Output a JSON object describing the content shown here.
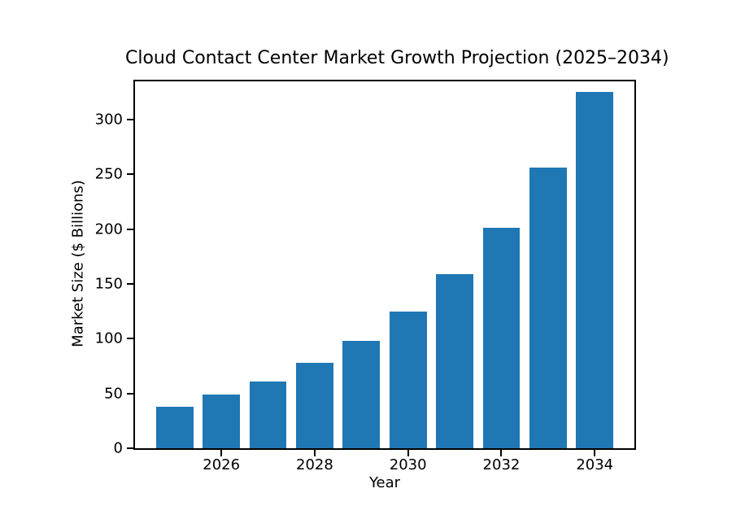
{
  "chart_data": {
    "type": "bar",
    "title": "Cloud Contact Center Market Growth Projection (2025–2034)",
    "xlabel": "Year",
    "ylabel": "Market Size ($ Billions)",
    "categories": [
      2025,
      2026,
      2027,
      2028,
      2029,
      2030,
      2031,
      2032,
      2033,
      2034
    ],
    "values": [
      38,
      49,
      61,
      78,
      98,
      125,
      159,
      201,
      256,
      325
    ],
    "series_name": "Market Size ($ Billions)",
    "yticks": [
      0,
      50,
      100,
      150,
      200,
      250,
      300
    ],
    "xticks": [
      2026,
      2028,
      2030,
      2032,
      2034
    ],
    "ylim": [
      0,
      335
    ],
    "xlim": [
      2024.15,
      2034.85
    ],
    "bar_width_years": 0.8,
    "grid": false,
    "legend": false,
    "colors": {
      "bar": "#1f77b4",
      "axis": "#000000",
      "text": "#000000",
      "background": "#ffffff"
    }
  }
}
